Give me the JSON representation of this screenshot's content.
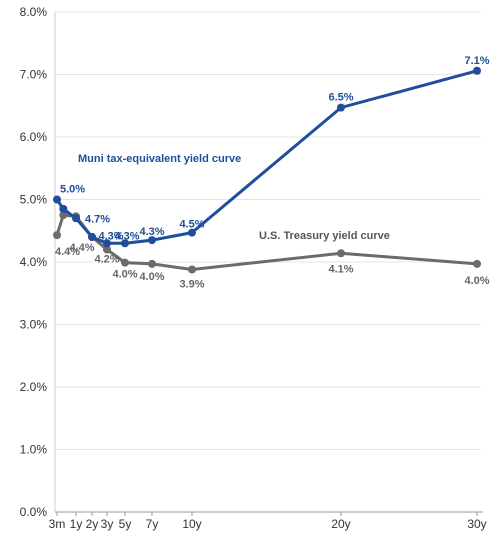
{
  "chart_data": {
    "type": "line",
    "title": "",
    "xlabel": "",
    "ylabel": "",
    "x_tick_labels": [
      "3m",
      "1y",
      "2y",
      "3y",
      "5y",
      "7y",
      "10y",
      "20y",
      "30y"
    ],
    "y_tick_labels": [
      "0.0%",
      "1.0%",
      "2.0%",
      "3.0%",
      "4.0%",
      "5.0%",
      "6.0%",
      "7.0%",
      "8.0%"
    ],
    "ylim": [
      0,
      8
    ],
    "y_unit": "%",
    "grid": "horizontal",
    "series": [
      {
        "name": "Muni tax-equivalent yield curve",
        "color": "#1f4e9c",
        "points": [
          {
            "x": 0.25,
            "y": 5.0,
            "label": "5.0%"
          },
          {
            "x": 0.5,
            "y": 4.85,
            "label": ""
          },
          {
            "x": 1,
            "y": 4.7,
            "label": "4.7%"
          },
          {
            "x": 2,
            "y": 4.4,
            "label": ""
          },
          {
            "x": 3,
            "y": 4.3,
            "label": "4.3%"
          },
          {
            "x": 5,
            "y": 4.3,
            "label": "4.3%"
          },
          {
            "x": 7,
            "y": 4.35,
            "label": "4.3%"
          },
          {
            "x": 10,
            "y": 4.47,
            "label": "4.5%"
          },
          {
            "x": 20,
            "y": 6.47,
            "label": "6.5%"
          },
          {
            "x": 30,
            "y": 7.06,
            "label": "7.1%"
          }
        ]
      },
      {
        "name": "U.S. Treasury yield curve",
        "color": "#6b6b6b",
        "points": [
          {
            "x": 0.25,
            "y": 4.43,
            "label": "4.4%"
          },
          {
            "x": 0.5,
            "y": 4.75,
            "label": ""
          },
          {
            "x": 1,
            "y": 4.73,
            "label": ""
          },
          {
            "x": 2,
            "y": 4.4,
            "label": "4.4%"
          },
          {
            "x": 3,
            "y": 4.2,
            "label": "4.2%"
          },
          {
            "x": 5,
            "y": 3.99,
            "label": "4.0%"
          },
          {
            "x": 7,
            "y": 3.97,
            "label": "4.0%"
          },
          {
            "x": 10,
            "y": 3.88,
            "label": "3.9%"
          },
          {
            "x": 20,
            "y": 4.14,
            "label": "4.1%"
          },
          {
            "x": 30,
            "y": 3.97,
            "label": "4.0%"
          }
        ]
      }
    ]
  }
}
